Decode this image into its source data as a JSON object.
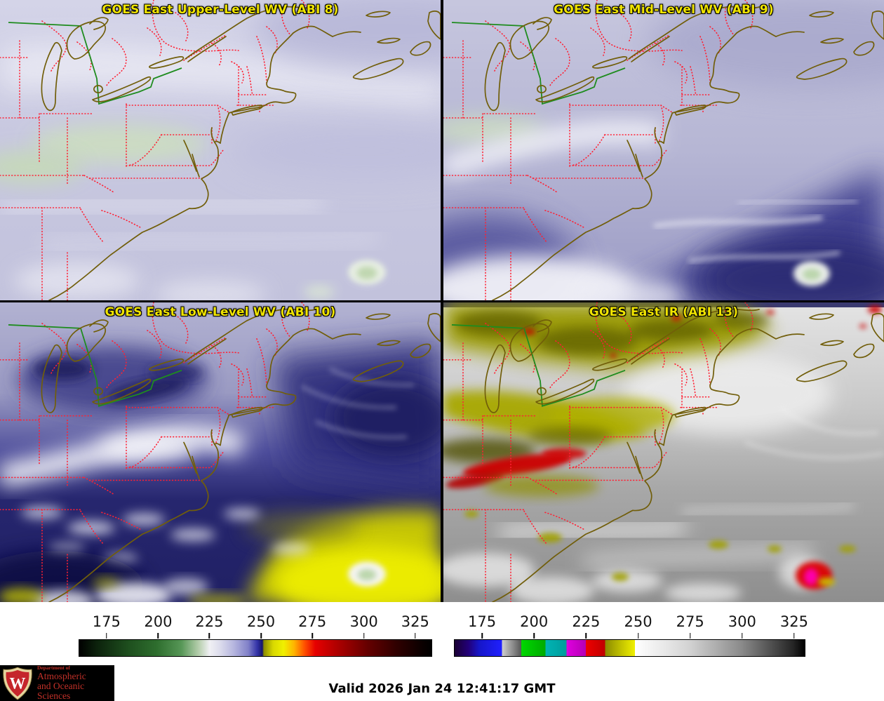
{
  "panels": [
    {
      "id": "abi8",
      "title": "GOES East Upper-Level WV (ABI 8)"
    },
    {
      "id": "abi9",
      "title": "GOES East Mid-Level WV (ABI 9)"
    },
    {
      "id": "abi10",
      "title": "GOES East Low-Level WV (ABI 10)"
    },
    {
      "id": "abi13",
      "title": "GOES East IR (ABI 13)"
    }
  ],
  "title_color": "#f0e400",
  "colorbars": {
    "left": {
      "name": "water-vapor-brightness-temperature-scale",
      "units": "K",
      "ticks": [
        "175",
        "200",
        "225",
        "250",
        "275",
        "300",
        "325"
      ],
      "tick_positions_pct": [
        7.9,
        22.5,
        37.0,
        51.6,
        66.1,
        80.7,
        95.2
      ],
      "stops": [
        [
          0,
          "#000000"
        ],
        [
          5,
          "#0c220c"
        ],
        [
          14,
          "#1e4f1e"
        ],
        [
          22,
          "#2e6e2e"
        ],
        [
          29,
          "#579757"
        ],
        [
          34,
          "#b7cfae"
        ],
        [
          37,
          "#f0f0f4"
        ],
        [
          40,
          "#dcdcec"
        ],
        [
          44,
          "#b4b4de"
        ],
        [
          48,
          "#8080c8"
        ],
        [
          50.5,
          "#3434a8"
        ],
        [
          52,
          "#16166a"
        ],
        [
          52.4,
          "#8c8c00"
        ],
        [
          55,
          "#d8d800"
        ],
        [
          58,
          "#f0f000"
        ],
        [
          61,
          "#ffb400"
        ],
        [
          64,
          "#ff5000"
        ],
        [
          67,
          "#e60000"
        ],
        [
          74,
          "#a80000"
        ],
        [
          82,
          "#640000"
        ],
        [
          90,
          "#300000"
        ],
        [
          97,
          "#0c0000"
        ],
        [
          100,
          "#000000"
        ]
      ]
    },
    "right": {
      "name": "infrared-brightness-temperature-scale",
      "units": "K",
      "ticks": [
        "175",
        "200",
        "225",
        "250",
        "275",
        "300",
        "325"
      ],
      "tick_positions_pct": [
        8.0,
        22.8,
        37.6,
        52.4,
        67.2,
        82.0,
        96.8
      ],
      "stops": [
        [
          0,
          "#1a0033"
        ],
        [
          4,
          "#22007a"
        ],
        [
          7,
          "#1616c8"
        ],
        [
          13.5,
          "#2020ff"
        ],
        [
          13.5,
          "#d0d0d0"
        ],
        [
          19,
          "#585858"
        ],
        [
          19,
          "#00d800"
        ],
        [
          26,
          "#00aa00"
        ],
        [
          26,
          "#00b4b4"
        ],
        [
          32,
          "#009c9c"
        ],
        [
          32,
          "#e000e0"
        ],
        [
          37.5,
          "#b400b4"
        ],
        [
          37.5,
          "#ee0000"
        ],
        [
          43,
          "#c00000"
        ],
        [
          43,
          "#8a8a00"
        ],
        [
          48,
          "#c8c800"
        ],
        [
          51.5,
          "#f0f000"
        ],
        [
          51.5,
          "#ffffff"
        ],
        [
          60,
          "#e8e8e8"
        ],
        [
          67.2,
          "#d2d2d2"
        ],
        [
          82,
          "#8a8a8a"
        ],
        [
          96.8,
          "#242424"
        ],
        [
          100,
          "#000000"
        ]
      ]
    }
  },
  "map_colors": {
    "coastline": "#715e0a",
    "state_border": "#ff2033",
    "international_border": "#1f8c1f"
  },
  "footer": {
    "valid_text": "Valid 2026 Jan 24 12:41:17 GMT",
    "logo": {
      "dept_line": "Department of",
      "line2": "Atmospheric",
      "line3": "and Oceanic Sciences",
      "crest_letter": "W",
      "background": "#000000",
      "text_color": "#c23028"
    }
  }
}
